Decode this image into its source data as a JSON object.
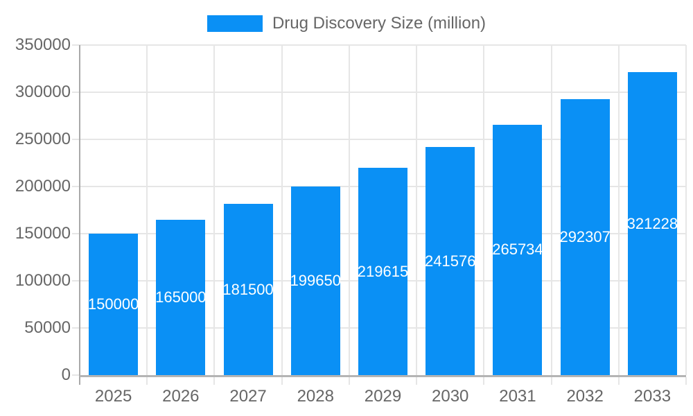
{
  "chart_data": {
    "type": "bar",
    "legend": "Drug Discovery Size (million)",
    "legend_position": "top",
    "categories": [
      "2025",
      "2026",
      "2027",
      "2028",
      "2029",
      "2030",
      "2031",
      "2032",
      "2033"
    ],
    "series": [
      {
        "name": "Drug Discovery Size (million)",
        "values": [
          150000,
          165000,
          181500,
          199650,
          219615,
          241576,
          265734,
          292307,
          321228
        ]
      }
    ],
    "value_labels": [
      "150000",
      "165000",
      "181500",
      "199650",
      "219615",
      "241576",
      "265734",
      "292307",
      "321228"
    ],
    "xlabel": "",
    "ylabel": "",
    "ylim": [
      0,
      350000
    ],
    "yticks": [
      "0",
      "50000",
      "100000",
      "150000",
      "200000",
      "250000",
      "300000",
      "350000"
    ],
    "grid": true,
    "colors": {
      "bar": "#0a90f5",
      "value_label_text": "#ffffff",
      "tick_text": "#666666",
      "grid_line": "#e6e6e6",
      "y_axis_line": "#a8a8a8",
      "x_axis_line": "#b4b4b4",
      "background": "#ffffff"
    }
  }
}
